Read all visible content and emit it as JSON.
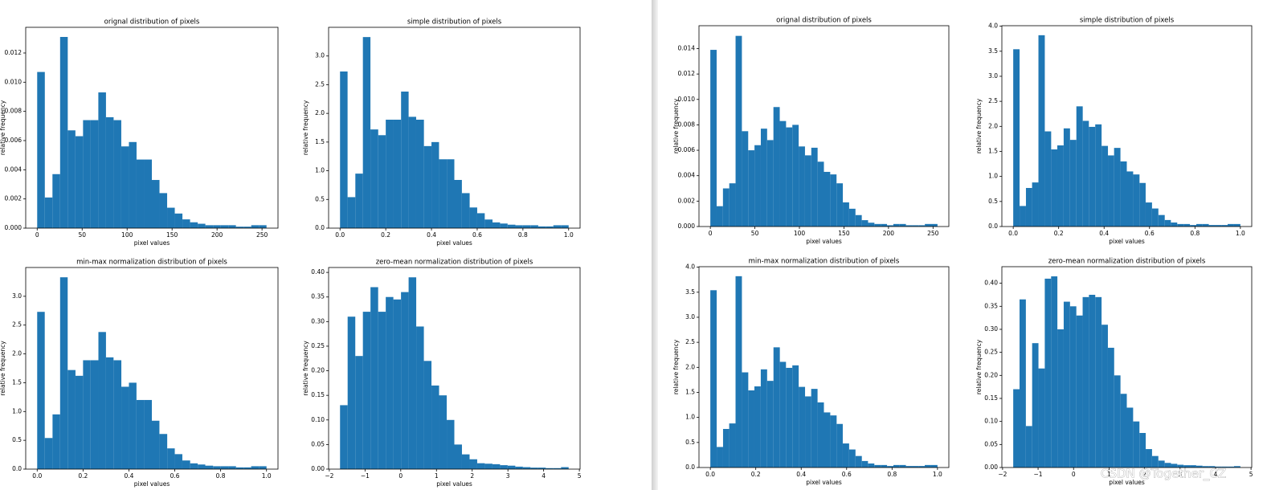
{
  "chart_data": [
    {
      "type": "histogram",
      "title": "orignal distribution of pixels",
      "xlabel": "pixel values",
      "ylabel": "relative frequency",
      "color": "#1f77b4",
      "bins": [
        0,
        8.5,
        17,
        25.5,
        34,
        42.5,
        51,
        59.5,
        68,
        76.5,
        85,
        93.5,
        102,
        110.5,
        119,
        127.5,
        136,
        144.5,
        153,
        161.5,
        170,
        178.5,
        187,
        195.5,
        204,
        212.5,
        221,
        229.5,
        238,
        246.5,
        255
      ],
      "values": [
        0.0107,
        0.0021,
        0.0037,
        0.0131,
        0.0067,
        0.0063,
        0.0074,
        0.0074,
        0.0093,
        0.0076,
        0.0074,
        0.0056,
        0.0059,
        0.0047,
        0.0047,
        0.0033,
        0.0024,
        0.0014,
        0.001,
        0.0006,
        0.0004,
        0.0003,
        0.0002,
        0.0002,
        0.0002,
        0.0002,
        0.0001,
        0.0001,
        0.0002,
        0.0002
      ],
      "xlim": [
        -12.75,
        267.75
      ],
      "xticks": [
        0,
        50,
        100,
        150,
        200,
        250
      ],
      "ylim": [
        0,
        0.01376
      ],
      "yticks": [
        {
          "value": 0,
          "label": "0.000"
        },
        0.002,
        0.004,
        0.006,
        0.008,
        {
          "value": 0.01,
          "label": "0.010"
        },
        0.012
      ]
    },
    {
      "type": "histogram",
      "title": "simple distribution of pixels",
      "xlabel": "pixel values",
      "ylabel": "relative frequency",
      "color": "#1f77b4",
      "bins": [
        0,
        0.033,
        0.067,
        0.1,
        0.133,
        0.167,
        0.2,
        0.233,
        0.267,
        0.3,
        0.333,
        0.367,
        0.4,
        0.433,
        0.467,
        0.5,
        0.533,
        0.567,
        0.6,
        0.633,
        0.667,
        0.7,
        0.733,
        0.767,
        0.8,
        0.833,
        0.867,
        0.9,
        0.933,
        0.967,
        1
      ],
      "values": [
        2.73,
        0.54,
        0.95,
        3.33,
        1.72,
        1.62,
        1.89,
        1.89,
        2.38,
        1.94,
        1.89,
        1.43,
        1.5,
        1.2,
        1.2,
        0.84,
        0.61,
        0.36,
        0.26,
        0.15,
        0.1,
        0.08,
        0.06,
        0.05,
        0.05,
        0.05,
        0.03,
        0.03,
        0.05,
        0.05
      ],
      "xlim": [
        -0.05,
        1.05
      ],
      "xticks": [
        {
          "value": 0,
          "label": "0.0"
        },
        0.2,
        0.4,
        0.6,
        0.8,
        {
          "value": 1,
          "label": "1.0"
        }
      ],
      "ylim": [
        0,
        3.5
      ],
      "yticks": [
        {
          "value": 0,
          "label": "0.0"
        },
        0.5,
        {
          "value": 1,
          "label": "1.0"
        },
        1.5,
        {
          "value": 2,
          "label": "2.0"
        },
        2.5,
        {
          "value": 3,
          "label": "3.0"
        }
      ]
    },
    {
      "type": "histogram",
      "title": "min-max normalization distribution of pixels",
      "xlabel": "pixel values",
      "ylabel": "relative frequency",
      "color": "#1f77b4",
      "bins": [
        0,
        0.033,
        0.067,
        0.1,
        0.133,
        0.167,
        0.2,
        0.233,
        0.267,
        0.3,
        0.333,
        0.367,
        0.4,
        0.433,
        0.467,
        0.5,
        0.533,
        0.567,
        0.6,
        0.633,
        0.667,
        0.7,
        0.733,
        0.767,
        0.8,
        0.833,
        0.867,
        0.9,
        0.933,
        0.967,
        1
      ],
      "values": [
        2.73,
        0.54,
        0.95,
        3.33,
        1.72,
        1.62,
        1.89,
        1.89,
        2.38,
        1.94,
        1.89,
        1.43,
        1.5,
        1.2,
        1.2,
        0.84,
        0.61,
        0.36,
        0.26,
        0.15,
        0.1,
        0.08,
        0.06,
        0.05,
        0.05,
        0.05,
        0.03,
        0.03,
        0.05,
        0.05
      ],
      "xlim": [
        -0.05,
        1.05
      ],
      "xticks": [
        {
          "value": 0,
          "label": "0.0"
        },
        0.2,
        0.4,
        0.6,
        0.8,
        {
          "value": 1,
          "label": "1.0"
        }
      ],
      "ylim": [
        0,
        3.5
      ],
      "yticks": [
        {
          "value": 0,
          "label": "0.0"
        },
        0.5,
        {
          "value": 1,
          "label": "1.0"
        },
        1.5,
        {
          "value": 2,
          "label": "2.0"
        },
        2.5,
        {
          "value": 3,
          "label": "3.0"
        }
      ]
    },
    {
      "type": "histogram",
      "title": "zero-mean normalization distribution of pixels",
      "xlabel": "pixel values",
      "ylabel": "relative frequency",
      "color": "#1f77b4",
      "bins": [
        -1.7,
        -1.487,
        -1.273,
        -1.06,
        -0.847,
        -0.633,
        -0.42,
        -0.207,
        0.007,
        0.22,
        0.433,
        0.647,
        0.86,
        1.073,
        1.287,
        1.5,
        1.713,
        1.927,
        2.14,
        2.353,
        2.567,
        2.78,
        2.993,
        3.207,
        3.42,
        3.633,
        3.847,
        4.06,
        4.273,
        4.487,
        4.7
      ],
      "values": [
        0.13,
        0.31,
        0.23,
        0.32,
        0.37,
        0.32,
        0.35,
        0.345,
        0.36,
        0.39,
        0.29,
        0.22,
        0.17,
        0.15,
        0.1,
        0.05,
        0.03,
        0.02,
        0.012,
        0.011,
        0.01,
        0.008,
        0.007,
        0.005,
        0.004,
        0.003,
        0.003,
        0.002,
        0.002,
        0.004
      ],
      "xlim": [
        -2.02,
        5.02
      ],
      "xticks": [
        {
          "value": -2,
          "label": "−2"
        },
        {
          "value": -1,
          "label": "−1"
        },
        0,
        1,
        2,
        3,
        4,
        5
      ],
      "ylim": [
        0,
        0.41
      ],
      "yticks": [
        {
          "value": 0,
          "label": "0.00"
        },
        0.05,
        {
          "value": 0.1,
          "label": "0.10"
        },
        0.15,
        {
          "value": 0.2,
          "label": "0.20"
        },
        0.25,
        {
          "value": 0.3,
          "label": "0.30"
        },
        0.35,
        {
          "value": 0.4,
          "label": "0.40"
        }
      ]
    },
    {
      "type": "histogram",
      "title": "orignal distribution of pixels",
      "xlabel": "pixel values",
      "ylabel": "relative frequency",
      "color": "#1f77b4",
      "bins": [
        0,
        7.08,
        14.17,
        21.25,
        28.33,
        35.42,
        42.5,
        49.58,
        56.67,
        63.75,
        70.83,
        77.92,
        85,
        92.08,
        99.17,
        106.25,
        113.33,
        120.42,
        127.5,
        134.58,
        141.67,
        148.75,
        155.83,
        162.92,
        170,
        177.08,
        184.17,
        191.25,
        198.33,
        205.42,
        212.5,
        219.58,
        226.67,
        233.75,
        240.83,
        247.92,
        255
      ],
      "values": [
        0.0139,
        0.0016,
        0.003,
        0.0034,
        0.015,
        0.0075,
        0.006,
        0.0064,
        0.0077,
        0.0068,
        0.0094,
        0.0083,
        0.0078,
        0.008,
        0.0063,
        0.0056,
        0.0062,
        0.0051,
        0.0043,
        0.0041,
        0.0034,
        0.0019,
        0.0014,
        0.0009,
        0.0005,
        0.0003,
        0.0002,
        0.0002,
        0.0001,
        0.0002,
        0.0002,
        0.0001,
        0.0001,
        0.0001,
        0.0002,
        0.0002
      ],
      "xlim": [
        -12.75,
        267.75
      ],
      "xticks": [
        0,
        50,
        100,
        150,
        200,
        250
      ],
      "ylim": [
        0,
        0.0158
      ],
      "yticks": [
        {
          "value": 0,
          "label": "0.000"
        },
        0.002,
        0.004,
        0.006,
        0.008,
        {
          "value": 0.01,
          "label": "0.010"
        },
        0.012,
        0.014
      ]
    },
    {
      "type": "histogram",
      "title": "simple distribution of pixels",
      "xlabel": "pixel values",
      "ylabel": "relative frequency",
      "color": "#1f77b4",
      "bins": [
        0,
        0.028,
        0.056,
        0.083,
        0.111,
        0.139,
        0.167,
        0.194,
        0.222,
        0.25,
        0.278,
        0.306,
        0.333,
        0.361,
        0.389,
        0.417,
        0.444,
        0.472,
        0.5,
        0.528,
        0.556,
        0.583,
        0.611,
        0.639,
        0.667,
        0.694,
        0.722,
        0.75,
        0.778,
        0.806,
        0.833,
        0.861,
        0.889,
        0.917,
        0.944,
        0.972,
        1
      ],
      "values": [
        3.54,
        0.41,
        0.77,
        0.88,
        3.82,
        1.9,
        1.54,
        1.62,
        1.96,
        1.73,
        2.4,
        2.11,
        1.99,
        2.04,
        1.61,
        1.42,
        1.57,
        1.3,
        1.1,
        1.04,
        0.87,
        0.48,
        0.36,
        0.23,
        0.13,
        0.08,
        0.05,
        0.05,
        0.03,
        0.05,
        0.05,
        0.03,
        0.03,
        0.03,
        0.05,
        0.05
      ],
      "xlim": [
        -0.05,
        1.05
      ],
      "xticks": [
        {
          "value": 0,
          "label": "0.0"
        },
        0.2,
        0.4,
        0.6,
        0.8,
        {
          "value": 1,
          "label": "1.0"
        }
      ],
      "ylim": [
        0,
        4.01
      ],
      "yticks": [
        {
          "value": 0,
          "label": "0.0"
        },
        0.5,
        {
          "value": 1,
          "label": "1.0"
        },
        1.5,
        {
          "value": 2,
          "label": "2.0"
        },
        2.5,
        {
          "value": 3,
          "label": "3.0"
        },
        3.5,
        {
          "value": 4,
          "label": "4.0"
        }
      ]
    },
    {
      "type": "histogram",
      "title": "min-max normalization distribution of pixels",
      "xlabel": "pixel values",
      "ylabel": "relative frequency",
      "color": "#1f77b4",
      "bins": [
        0,
        0.028,
        0.056,
        0.083,
        0.111,
        0.139,
        0.167,
        0.194,
        0.222,
        0.25,
        0.278,
        0.306,
        0.333,
        0.361,
        0.389,
        0.417,
        0.444,
        0.472,
        0.5,
        0.528,
        0.556,
        0.583,
        0.611,
        0.639,
        0.667,
        0.694,
        0.722,
        0.75,
        0.778,
        0.806,
        0.833,
        0.861,
        0.889,
        0.917,
        0.944,
        0.972,
        1
      ],
      "values": [
        3.54,
        0.41,
        0.77,
        0.88,
        3.82,
        1.9,
        1.54,
        1.62,
        1.96,
        1.73,
        2.4,
        2.11,
        1.99,
        2.04,
        1.61,
        1.42,
        1.57,
        1.3,
        1.1,
        1.04,
        0.87,
        0.48,
        0.36,
        0.23,
        0.13,
        0.08,
        0.05,
        0.05,
        0.03,
        0.05,
        0.05,
        0.03,
        0.03,
        0.03,
        0.05,
        0.05
      ],
      "xlim": [
        -0.05,
        1.05
      ],
      "xticks": [
        {
          "value": 0,
          "label": "0.0"
        },
        0.2,
        0.4,
        0.6,
        0.8,
        {
          "value": 1,
          "label": "1.0"
        }
      ],
      "ylim": [
        0,
        4.01
      ],
      "yticks": [
        {
          "value": 0,
          "label": "0.0"
        },
        0.5,
        {
          "value": 1,
          "label": "1.0"
        },
        1.5,
        {
          "value": 2,
          "label": "2.0"
        },
        2.5,
        {
          "value": 3,
          "label": "3.0"
        },
        3.5,
        {
          "value": 4,
          "label": "4.0"
        }
      ]
    },
    {
      "type": "histogram",
      "title": "zero-mean normalization distribution of pixels",
      "xlabel": "pixel values",
      "ylabel": "relative frequency",
      "color": "#1f77b4",
      "bins": [
        -1.7,
        -1.522,
        -1.344,
        -1.167,
        -0.989,
        -0.811,
        -0.633,
        -0.456,
        -0.278,
        -0.1,
        0.078,
        0.256,
        0.433,
        0.611,
        0.789,
        0.967,
        1.144,
        1.322,
        1.5,
        1.678,
        1.856,
        2.033,
        2.211,
        2.389,
        2.567,
        2.744,
        2.922,
        3.1,
        3.278,
        3.456,
        3.633,
        3.811,
        3.989,
        4.167,
        4.344,
        4.522,
        4.7
      ],
      "values": [
        0.17,
        0.365,
        0.09,
        0.27,
        0.215,
        0.41,
        0.415,
        0.3,
        0.36,
        0.35,
        0.33,
        0.37,
        0.375,
        0.37,
        0.31,
        0.26,
        0.2,
        0.16,
        0.13,
        0.1,
        0.075,
        0.04,
        0.025,
        0.015,
        0.01,
        0.008,
        0.006,
        0.005,
        0.005,
        0.004,
        0.003,
        0.003,
        0.002,
        0.002,
        0.002,
        0.003
      ],
      "xlim": [
        -2.02,
        5.02
      ],
      "xticks": [
        {
          "value": -2,
          "label": "−2"
        },
        {
          "value": -1,
          "label": "−1"
        },
        0,
        1,
        2,
        3,
        4,
        5
      ],
      "ylim": [
        0,
        0.436
      ],
      "yticks": [
        {
          "value": 0,
          "label": "0.00"
        },
        0.05,
        {
          "value": 0.1,
          "label": "0.10"
        },
        0.15,
        {
          "value": 0.2,
          "label": "0.20"
        },
        0.25,
        {
          "value": 0.3,
          "label": "0.30"
        },
        0.35,
        {
          "value": 0.4,
          "label": "0.40"
        }
      ]
    }
  ],
  "watermark": "CSDN @Together_CZ"
}
